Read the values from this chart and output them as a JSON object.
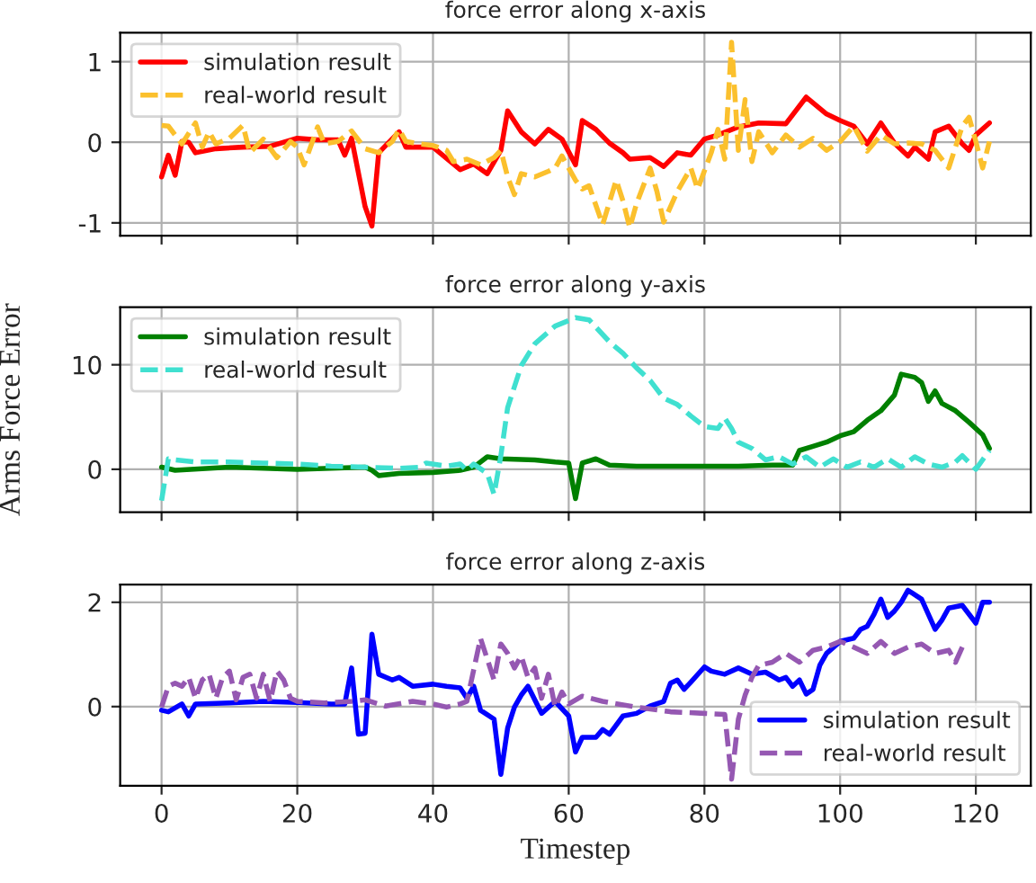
{
  "chart_data": [
    {
      "type": "line",
      "title": "force error along x-axis",
      "xlim": [
        -6.1,
        128.1
      ],
      "xticks": [
        0,
        20,
        40,
        60,
        80,
        100,
        120
      ],
      "ylim": [
        -1.16,
        1.36
      ],
      "yticks": [
        -1,
        0,
        1
      ],
      "grid": true,
      "legend": "top left",
      "tick_labels": "y",
      "series": [
        {
          "name": "simulation result",
          "color": "#ff0000",
          "line_style": "solid",
          "x": [
            0,
            1,
            2,
            3,
            4,
            5,
            8,
            12,
            16,
            20,
            23,
            26,
            27,
            28,
            30,
            31,
            32,
            35,
            36,
            40,
            44,
            46,
            48,
            50,
            51,
            53,
            55,
            57,
            59,
            61,
            62,
            64,
            66,
            68,
            69,
            72,
            74,
            76,
            78,
            80,
            82,
            85,
            88,
            92,
            95,
            98,
            100,
            102,
            104,
            106,
            108,
            110,
            111,
            113,
            114,
            116,
            118,
            119,
            120,
            122
          ],
          "values": [
            -0.43,
            -0.16,
            -0.41,
            0.01,
            0,
            -0.13,
            -0.08,
            -0.06,
            -0.05,
            0.05,
            0.03,
            0.03,
            -0.16,
            0.05,
            -0.8,
            -1.04,
            -0.13,
            0.13,
            -0.06,
            -0.06,
            -0.34,
            -0.27,
            -0.39,
            -0.1,
            0.39,
            0.13,
            -0.02,
            0.16,
            0.04,
            -0.28,
            0.27,
            0.16,
            -0.01,
            -0.13,
            -0.21,
            -0.19,
            -0.3,
            -0.13,
            -0.16,
            0.04,
            0.09,
            0.19,
            0.24,
            0.23,
            0.56,
            0.35,
            0.27,
            0.2,
            -0.02,
            0.24,
            -0.01,
            -0.17,
            -0.06,
            -0.21,
            0.13,
            0.2,
            -0.02,
            -0.1,
            0.09,
            0.24
          ]
        },
        {
          "name": "real-world result",
          "color": "#fbc02d",
          "line_style": "dashed",
          "x": [
            0,
            1,
            2,
            3,
            5,
            6,
            7,
            8,
            10,
            12,
            13,
            15,
            17,
            19,
            20,
            21,
            23,
            24,
            26,
            28,
            30,
            32,
            34,
            35,
            36,
            38,
            40,
            42,
            43,
            45,
            47,
            49,
            50,
            51,
            52,
            53,
            55,
            57,
            58,
            59,
            61,
            62,
            63,
            65,
            67,
            68,
            69,
            70,
            72,
            73,
            74,
            76,
            78,
            79,
            81,
            82,
            83,
            84,
            85,
            86,
            87,
            88,
            90,
            92,
            94,
            96,
            98,
            100,
            102,
            104,
            106,
            108,
            110,
            112,
            114,
            116,
            118,
            119,
            120,
            121,
            122
          ],
          "values": [
            0.21,
            0.2,
            0.09,
            -0.02,
            0.24,
            -0.06,
            0.13,
            -0.02,
            0.05,
            0.21,
            -0.13,
            0.04,
            -0.19,
            0.01,
            -0.06,
            -0.28,
            0.19,
            -0.02,
            0.01,
            0.14,
            -0.08,
            -0.13,
            0.01,
            0.16,
            0.01,
            -0.02,
            -0.04,
            -0.1,
            -0.24,
            -0.21,
            -0.28,
            -0.19,
            -0.1,
            -0.43,
            -0.65,
            -0.39,
            -0.43,
            -0.36,
            -0.32,
            -0.17,
            -0.47,
            -0.58,
            -0.54,
            -1.02,
            -0.47,
            -0.73,
            -1.06,
            -0.76,
            -0.32,
            -0.61,
            -0.99,
            -0.61,
            -0.32,
            -0.58,
            -0.13,
            0.16,
            -0.21,
            1.24,
            -0.1,
            0.53,
            -0.24,
            0.13,
            -0.13,
            0.09,
            -0.06,
            0.05,
            -0.1,
            0.01,
            0.2,
            -0.11,
            0.09,
            -0.02,
            -0.01,
            -0.02,
            -0.1,
            -0.32,
            0.2,
            0.31,
            0.01,
            -0.32,
            0.01
          ]
        }
      ]
    },
    {
      "type": "line",
      "title": "force error along y-axis",
      "ylabel": "Arms Force Error",
      "xlim": [
        -6.1,
        128.1
      ],
      "xticks": [
        0,
        20,
        40,
        60,
        80,
        100,
        120
      ],
      "ylim": [
        -4.1,
        15.5
      ],
      "yticks": [
        0,
        10
      ],
      "grid": true,
      "legend": "top left",
      "tick_labels": "y",
      "series": [
        {
          "name": "simulation result",
          "color": "#008000",
          "line_style": "solid",
          "x": [
            0,
            2,
            10,
            20,
            30,
            31,
            32,
            35,
            40,
            44,
            46,
            48,
            50,
            55,
            58,
            60,
            61,
            62,
            64,
            66,
            70,
            75,
            80,
            85,
            90,
            93,
            94,
            96,
            98,
            100,
            102,
            104,
            106,
            108,
            109,
            111,
            112,
            113,
            114,
            115,
            117,
            119,
            121,
            122
          ],
          "values": [
            0.2,
            -0.1,
            0.2,
            0,
            0.2,
            -0.1,
            -0.6,
            -0.4,
            -0.3,
            -0.1,
            0.2,
            1.2,
            1.0,
            0.9,
            0.7,
            0.6,
            -2.8,
            0.6,
            1.0,
            0.4,
            0.3,
            0.3,
            0.3,
            0.3,
            0.4,
            0.4,
            1.8,
            2.2,
            2.6,
            3.2,
            3.6,
            4.7,
            5.6,
            7.1,
            9.1,
            8.8,
            8.3,
            6.5,
            7.5,
            6.3,
            5.6,
            4.5,
            3.3,
            2.0
          ]
        },
        {
          "name": "real-world result",
          "color": "#40e0d0",
          "line_style": "dashed",
          "x": [
            0,
            1,
            2,
            5,
            10,
            15,
            20,
            25,
            30,
            35,
            38,
            39,
            42,
            44,
            45,
            46,
            48,
            49,
            50,
            51,
            53,
            55,
            58,
            61,
            63,
            66,
            68,
            70,
            72,
            74,
            76,
            78,
            80,
            82,
            83,
            84,
            85,
            87,
            89,
            91,
            93,
            95,
            97,
            99,
            101,
            103,
            105,
            107,
            109,
            111,
            113,
            115,
            117,
            118,
            120,
            122
          ],
          "values": [
            -3.0,
            1.0,
            0.9,
            0.7,
            0.7,
            0.6,
            0.5,
            0.3,
            0.2,
            0.1,
            0.2,
            0.6,
            0.3,
            0.5,
            -0.1,
            0.5,
            -0.4,
            -2.4,
            1.3,
            5.9,
            9.9,
            12.0,
            13.7,
            14.5,
            14.3,
            12.2,
            11.1,
            9.7,
            8.5,
            6.8,
            6.2,
            5.1,
            4.1,
            3.9,
            4.9,
            3.9,
            2.6,
            2.0,
            0.9,
            1.2,
            0.5,
            1.2,
            0.2,
            1.0,
            0.2,
            0.7,
            0.2,
            1.0,
            0.2,
            1.2,
            0.5,
            0.2,
            0.7,
            1.3,
            0,
            1.8
          ]
        }
      ]
    },
    {
      "type": "line",
      "title": "force error along z-axis",
      "xlabel": "Timestep",
      "xlim": [
        -6.1,
        128.1
      ],
      "xticks": [
        0,
        20,
        40,
        60,
        80,
        100,
        120
      ],
      "ylim": [
        -1.52,
        2.34
      ],
      "yticks": [
        0,
        2
      ],
      "grid": true,
      "legend": "bottom right",
      "series": [
        {
          "name": "simulation result",
          "color": "#0000ff",
          "line_style": "solid",
          "x": [
            0,
            1,
            3,
            4,
            5,
            10,
            15,
            20,
            25,
            27,
            28,
            29,
            30,
            31,
            32,
            34,
            35,
            37,
            40,
            42,
            44,
            45,
            46,
            47,
            49,
            50,
            51,
            52,
            53,
            54,
            56,
            58,
            60,
            61,
            62,
            64,
            65,
            66,
            68,
            70,
            72,
            74,
            75,
            76,
            77,
            78,
            80,
            81,
            83,
            85,
            87,
            89,
            91,
            92,
            93,
            94,
            95,
            96,
            97,
            98,
            100,
            102,
            103,
            104,
            105,
            106,
            107,
            108,
            109,
            110,
            112,
            114,
            115,
            116,
            118,
            120,
            121,
            122
          ],
          "values": [
            -0.07,
            -0.1,
            0.05,
            -0.18,
            0.05,
            0.07,
            0.1,
            0.08,
            0.05,
            0.05,
            0.74,
            -0.53,
            -0.51,
            1.39,
            0.62,
            0.51,
            0.56,
            0.39,
            0.43,
            0.39,
            0.36,
            0.16,
            0.39,
            -0.07,
            -0.24,
            -1.3,
            -0.41,
            -0.01,
            0.22,
            0.39,
            -0.13,
            0.1,
            -0.18,
            -0.87,
            -0.59,
            -0.59,
            -0.44,
            -0.53,
            -0.18,
            -0.13,
            0.01,
            0.1,
            0.45,
            0.51,
            0.33,
            0.47,
            0.76,
            0.68,
            0.62,
            0.74,
            0.62,
            0.66,
            0.51,
            0.56,
            0.39,
            0.51,
            0.24,
            0.33,
            0.79,
            1.02,
            1.25,
            1.31,
            1.48,
            1.54,
            1.77,
            2.06,
            1.71,
            1.83,
            2.0,
            2.23,
            2.06,
            1.48,
            1.66,
            1.89,
            1.94,
            1.6,
            2.0,
            2.0
          ]
        },
        {
          "name": "real-world result",
          "color": "#9558b2",
          "line_style": "dashed",
          "x": [
            0,
            1,
            2,
            3,
            4,
            5,
            6,
            7,
            8,
            9,
            10,
            11,
            12,
            13,
            14,
            15,
            16,
            17,
            18,
            19,
            20,
            24,
            28,
            30,
            33,
            37,
            40,
            42,
            44,
            45,
            47,
            48,
            49,
            50,
            51,
            52,
            53,
            54,
            55,
            56,
            57,
            58,
            59,
            60,
            62,
            65,
            70,
            75,
            80,
            83,
            84,
            85,
            86,
            87,
            88,
            90,
            92,
            94,
            96,
            98,
            100,
            102,
            104,
            106,
            108,
            110,
            112,
            114,
            116,
            117,
            118
          ],
          "values": [
            -0.01,
            0.39,
            0.45,
            0.39,
            0.56,
            0.16,
            0.51,
            0.62,
            0.16,
            0.56,
            0.68,
            0.13,
            0.56,
            0.62,
            0.16,
            0.62,
            0.1,
            0.68,
            0.51,
            0.16,
            0.1,
            0.07,
            0.1,
            0.13,
            0.01,
            0.1,
            0.05,
            -0.01,
            0.05,
            0.1,
            1.31,
            0.91,
            0.51,
            1.2,
            1.02,
            0.74,
            0.97,
            0.56,
            0.74,
            0.16,
            0.62,
            -0.01,
            0.28,
            0.05,
            0.2,
            0.1,
            -0.01,
            -0.1,
            -0.13,
            -0.15,
            -1.39,
            -0.24,
            0.22,
            0.56,
            0.79,
            0.85,
            1.02,
            0.85,
            1.08,
            1.14,
            1.25,
            1.14,
            1.02,
            1.25,
            1.02,
            1.14,
            1.2,
            1.02,
            1.08,
            0.85,
            1.14
          ]
        }
      ]
    }
  ]
}
